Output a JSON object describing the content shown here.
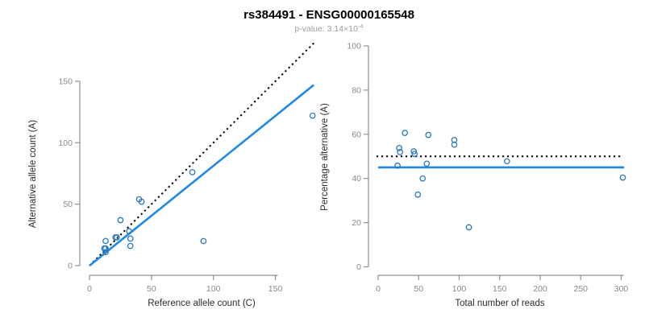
{
  "header": {
    "title": "rs384491 - ENSG00000165548",
    "pvalue_label": "p-value: 3.14×10",
    "pvalue_exponent": "-4"
  },
  "colors": {
    "point": "#2878BE",
    "fit_line": "#1E88E5",
    "identity_line": "#000000",
    "axis": "#909090",
    "tick_label": "#8a8a8a",
    "subtitle": "#9e9e9e",
    "title": "#000000",
    "background": "#ffffff"
  },
  "chart_data": [
    {
      "type": "scatter",
      "panel": "left",
      "xlabel": "Reference allele count (C)",
      "ylabel": "Alternative allele count (A)",
      "xlim": [
        0,
        181
      ],
      "ylim": [
        0,
        181
      ],
      "xticks": [
        0,
        50,
        100,
        150
      ],
      "yticks": [
        0,
        50,
        100,
        150
      ],
      "points": [
        [
          180,
          122
        ],
        [
          83,
          76
        ],
        [
          40,
          54
        ],
        [
          42,
          52
        ],
        [
          25,
          37
        ],
        [
          32,
          28
        ],
        [
          33,
          22
        ],
        [
          33,
          16
        ],
        [
          92,
          20
        ],
        [
          13,
          20
        ],
        [
          21,
          23
        ],
        [
          22,
          23
        ],
        [
          12,
          14
        ],
        [
          13,
          14
        ],
        [
          13,
          11
        ]
      ],
      "lines": [
        {
          "name": "identity-line",
          "style": "dotted",
          "color": "#000000",
          "from": [
            0,
            0
          ],
          "to": [
            181,
            181
          ]
        },
        {
          "name": "fit-line",
          "style": "solid",
          "color": "#1E88E5",
          "from": [
            0,
            0
          ],
          "to": [
            181,
            147
          ]
        }
      ],
      "grid": false,
      "legend": null
    },
    {
      "type": "scatter",
      "panel": "right",
      "xlabel": "Total number of reads",
      "ylabel": "Percentage alternative (A)",
      "xlim": [
        0,
        304
      ],
      "ylim": [
        0,
        100
      ],
      "xticks": [
        0,
        50,
        100,
        150,
        200,
        250,
        300
      ],
      "yticks": [
        0,
        20,
        40,
        60,
        80,
        100
      ],
      "points": [
        [
          302,
          40.4
        ],
        [
          159,
          47.8
        ],
        [
          94,
          57.4
        ],
        [
          94,
          55.3
        ],
        [
          62,
          59.7
        ],
        [
          60,
          46.7
        ],
        [
          55,
          40.0
        ],
        [
          49,
          32.7
        ],
        [
          112,
          17.9
        ],
        [
          33,
          60.6
        ],
        [
          44,
          52.3
        ],
        [
          45,
          51.1
        ],
        [
          26,
          53.8
        ],
        [
          27,
          51.9
        ],
        [
          24,
          45.8
        ]
      ],
      "lines": [
        {
          "name": "expected-50pct-line",
          "style": "dotted",
          "color": "#000000",
          "y": 50,
          "x_from": -2,
          "x_to": 300
        },
        {
          "name": "fitted-mean-line",
          "style": "solid",
          "color": "#1E88E5",
          "y": 45,
          "x_from": 0,
          "x_to": 303.5
        }
      ],
      "grid": false,
      "legend": null
    }
  ]
}
